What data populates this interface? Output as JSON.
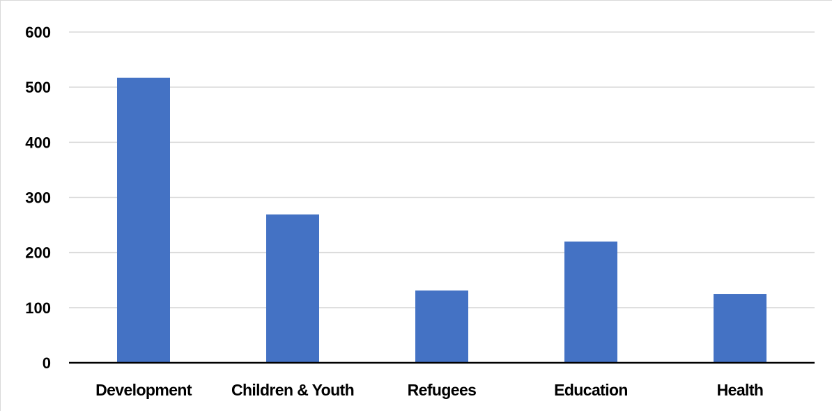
{
  "chart_data": {
    "type": "bar",
    "title": "",
    "xlabel": "",
    "ylabel": "",
    "categories": [
      "Development",
      "Children & Youth",
      "Refugees",
      "Education",
      "Health"
    ],
    "values": [
      517,
      269,
      131,
      220,
      125
    ],
    "ylim": [
      0,
      600
    ],
    "yticks": [
      "0",
      "100",
      "200",
      "300",
      "400",
      "500",
      "600"
    ],
    "grid": true,
    "legend": "none",
    "colors": {
      "bar": "#4472C4",
      "grid": "#d9d9d9",
      "axis": "#000000"
    }
  }
}
